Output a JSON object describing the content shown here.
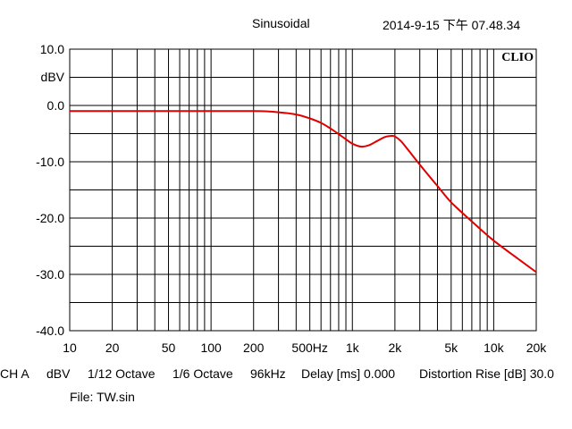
{
  "header": {
    "mode": "Sinusoidal",
    "timestamp": "2014-9-15 下午 07.48.34"
  },
  "logo": "CLIO",
  "chart_data": {
    "type": "line",
    "title": "",
    "xlabel": "",
    "ylabel": "dBV",
    "x_scale": "log",
    "xlim": [
      10,
      20000
    ],
    "ylim": [
      -40,
      10
    ],
    "grid": true,
    "x_tick_labels": [
      {
        "value": 10,
        "label": "10"
      },
      {
        "value": 20,
        "label": "20"
      },
      {
        "value": 50,
        "label": "50"
      },
      {
        "value": 100,
        "label": "100"
      },
      {
        "value": 200,
        "label": "200"
      },
      {
        "value": 500,
        "label": "500Hz"
      },
      {
        "value": 1000,
        "label": "1k"
      },
      {
        "value": 2000,
        "label": "2k"
      },
      {
        "value": 5000,
        "label": "5k"
      },
      {
        "value": 10000,
        "label": "10k"
      },
      {
        "value": 20000,
        "label": "20k"
      }
    ],
    "y_tick_labels": [
      {
        "value": 10,
        "label": "10.0"
      },
      {
        "value": 0,
        "label": "0.0"
      },
      {
        "value": -10,
        "label": "-10.0"
      },
      {
        "value": -20,
        "label": "-20.0"
      },
      {
        "value": -30,
        "label": "-30.0"
      },
      {
        "value": -40,
        "label": "-40.0"
      }
    ],
    "series": [
      {
        "color": "#e00000",
        "x": [
          10,
          20,
          50,
          100,
          200,
          250,
          300,
          400,
          500,
          600,
          700,
          800,
          900,
          1000,
          1150,
          1300,
          1500,
          1700,
          1900,
          2000,
          2200,
          2500,
          3000,
          4000,
          5000,
          7000,
          10000,
          15000,
          20000
        ],
        "y": [
          -1.0,
          -1.0,
          -1.0,
          -1.0,
          -1.0,
          -1.05,
          -1.2,
          -1.6,
          -2.3,
          -3.1,
          -4.1,
          -5.1,
          -6.0,
          -6.8,
          -7.3,
          -7.1,
          -6.3,
          -5.6,
          -5.4,
          -5.5,
          -6.3,
          -8.0,
          -10.5,
          -14.3,
          -17.2,
          -20.6,
          -24.0,
          -27.3,
          -29.6
        ]
      }
    ]
  },
  "status": {
    "channel": "CH A",
    "unit": "dBV",
    "smoothing": "1/12 Octave",
    "resolution": "1/6 Octave",
    "sample_rate": "96kHz",
    "delay": "Delay [ms] 0.000",
    "distortion": "Distortion Rise [dB] 30.0"
  },
  "file": "File: TW.sin"
}
